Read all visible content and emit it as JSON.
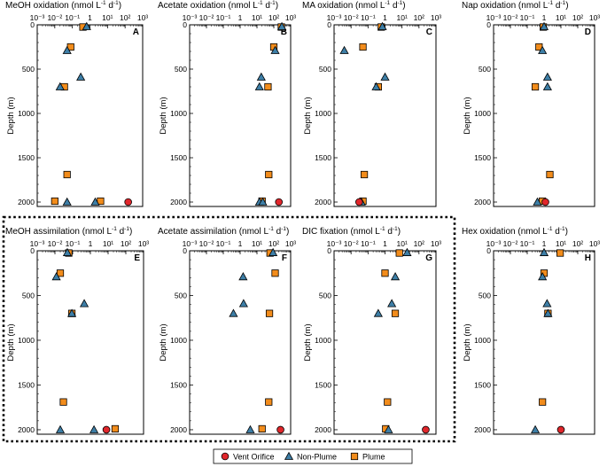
{
  "figure": {
    "y_axis_label": "Depth (m)",
    "y_ticks": [
      0,
      500,
      1000,
      1500,
      2000
    ],
    "ylim": [
      0,
      2050
    ],
    "x_ticks": [
      "10⁻³",
      "10⁻²",
      "10⁻¹",
      "1",
      "10¹",
      "10²",
      "10³"
    ],
    "xlim_log10": [
      -3,
      3
    ],
    "unit_prefix": "(nmol L",
    "unit_mid": "d",
    "unit_close": ")",
    "unit_exp": "-1",
    "legend": [
      {
        "label": "Vent Orifice",
        "marker": "circle",
        "color": "#e0262b"
      },
      {
        "label": "Non-Plume",
        "marker": "triangle",
        "color": "#3d7ea6"
      },
      {
        "label": "Plume",
        "marker": "square",
        "color": "#f28c1b"
      }
    ]
  },
  "chart_data": [
    {
      "type": "scatter",
      "letter": "A",
      "title_main": "MeOH oxidation",
      "xscale": "log",
      "xlim": [
        0.001,
        1000
      ],
      "ylim": [
        0,
        2050
      ],
      "series": [
        {
          "name": "Vent Orifice",
          "points": [
            [
              150,
              2000
            ]
          ]
        },
        {
          "name": "Non-Plume",
          "points": [
            [
              0.65,
              20
            ],
            [
              0.05,
              290
            ],
            [
              0.3,
              590
            ],
            [
              0.02,
              700
            ],
            [
              0.05,
              2000
            ],
            [
              2.0,
              2000
            ]
          ]
        },
        {
          "name": "Plume",
          "points": [
            [
              0.4,
              25
            ],
            [
              0.08,
              250
            ],
            [
              0.035,
              700
            ],
            [
              0.05,
              1690
            ],
            [
              0.01,
              1990
            ],
            [
              4.0,
              1990
            ]
          ]
        }
      ]
    },
    {
      "type": "scatter",
      "letter": "B",
      "title_main": "Acetate oxidation",
      "xscale": "log",
      "xlim": [
        0.001,
        1000
      ],
      "ylim": [
        0,
        2050
      ],
      "series": [
        {
          "name": "Vent Orifice",
          "points": [
            [
              200,
              2000
            ]
          ]
        },
        {
          "name": "Non-Plume",
          "points": [
            [
              300,
              20
            ],
            [
              120,
              290
            ],
            [
              18,
              590
            ],
            [
              14,
              700
            ],
            [
              14,
              2000
            ],
            [
              22,
              2000
            ]
          ]
        },
        {
          "name": "Plume",
          "points": [
            [
              280,
              25
            ],
            [
              100,
              250
            ],
            [
              45,
              700
            ],
            [
              50,
              1690
            ],
            [
              20,
              1990
            ]
          ]
        }
      ]
    },
    {
      "type": "scatter",
      "letter": "C",
      "title_main": "MA oxidation",
      "xscale": "log",
      "xlim": [
        0.001,
        1000
      ],
      "ylim": [
        0,
        2050
      ],
      "series": [
        {
          "name": "Vent Orifice",
          "points": [
            [
              0.03,
              2000
            ]
          ]
        },
        {
          "name": "Non-Plume",
          "points": [
            [
              0.7,
              20
            ],
            [
              0.004,
              290
            ],
            [
              1.0,
              590
            ],
            [
              0.3,
              700
            ],
            [
              0.04,
              2000
            ]
          ]
        },
        {
          "name": "Plume",
          "points": [
            [
              0.6,
              25
            ],
            [
              0.05,
              250
            ],
            [
              0.4,
              700
            ],
            [
              0.06,
              1690
            ],
            [
              0.05,
              1990
            ]
          ]
        }
      ]
    },
    {
      "type": "scatter",
      "letter": "D",
      "title_main": "Nap oxidation",
      "xscale": "log",
      "xlim": [
        0.001,
        1000
      ],
      "ylim": [
        0,
        2050
      ],
      "series": [
        {
          "name": "Vent Orifice",
          "points": [
            [
              1.2,
              2000
            ]
          ]
        },
        {
          "name": "Non-Plume",
          "points": [
            [
              1.0,
              20
            ],
            [
              0.8,
              290
            ],
            [
              1.6,
              590
            ],
            [
              1.6,
              700
            ],
            [
              0.4,
              2000
            ]
          ]
        },
        {
          "name": "Plume",
          "points": [
            [
              0.9,
              25
            ],
            [
              0.5,
              250
            ],
            [
              0.3,
              700
            ],
            [
              2.2,
              1690
            ],
            [
              0.8,
              1990
            ]
          ]
        }
      ]
    },
    {
      "type": "scatter",
      "letter": "E",
      "title_main": "MeOH assimilation",
      "xscale": "log",
      "xlim": [
        0.001,
        1000
      ],
      "ylim": [
        0,
        2050
      ],
      "series": [
        {
          "name": "Vent Orifice",
          "points": [
            [
              8,
              2000
            ]
          ]
        },
        {
          "name": "Non-Plume",
          "points": [
            [
              0.05,
              20
            ],
            [
              0.012,
              290
            ],
            [
              0.45,
              590
            ],
            [
              0.09,
              700
            ],
            [
              0.02,
              2000
            ],
            [
              1.6,
              2000
            ]
          ]
        },
        {
          "name": "Plume",
          "points": [
            [
              0.06,
              25
            ],
            [
              0.02,
              250
            ],
            [
              0.09,
              700
            ],
            [
              0.03,
              1690
            ],
            [
              25,
              1990
            ]
          ]
        }
      ]
    },
    {
      "type": "scatter",
      "letter": "F",
      "title_main": "Acetate assimilation",
      "xscale": "log",
      "xlim": [
        0.001,
        1000
      ],
      "ylim": [
        0,
        2050
      ],
      "series": [
        {
          "name": "Vent Orifice",
          "points": [
            [
              250,
              2000
            ]
          ]
        },
        {
          "name": "Non-Plume",
          "points": [
            [
              90,
              20
            ],
            [
              1.5,
              290
            ],
            [
              1.6,
              590
            ],
            [
              0.4,
              700
            ],
            [
              4.0,
              2000
            ]
          ]
        },
        {
          "name": "Plume",
          "points": [
            [
              60,
              25
            ],
            [
              120,
              250
            ],
            [
              55,
              700
            ],
            [
              50,
              1690
            ],
            [
              20,
              1990
            ]
          ]
        }
      ]
    },
    {
      "type": "scatter",
      "letter": "G",
      "title_main": "DIC fixation",
      "xscale": "log",
      "xlim": [
        0.001,
        1000
      ],
      "ylim": [
        0,
        2050
      ],
      "series": [
        {
          "name": "Vent Orifice",
          "points": [
            [
              250,
              2000
            ]
          ]
        },
        {
          "name": "Non-Plume",
          "points": [
            [
              20,
              20
            ],
            [
              4.0,
              290
            ],
            [
              2.5,
              590
            ],
            [
              0.4,
              700
            ],
            [
              1.6,
              2000
            ]
          ]
        },
        {
          "name": "Plume",
          "points": [
            [
              7,
              25
            ],
            [
              1.0,
              250
            ],
            [
              4.0,
              700
            ],
            [
              1.4,
              1690
            ],
            [
              1.1,
              1990
            ]
          ]
        }
      ]
    },
    {
      "type": "scatter",
      "letter": "H",
      "title_main": "Hex oxidation",
      "xscale": "log",
      "xlim": [
        0.001,
        1000
      ],
      "ylim": [
        0,
        2050
      ],
      "series": [
        {
          "name": "Vent Orifice",
          "points": [
            [
              10,
              2000
            ]
          ]
        },
        {
          "name": "Non-Plume",
          "points": [
            [
              1.0,
              20
            ],
            [
              0.8,
              290
            ],
            [
              1.5,
              590
            ],
            [
              1.7,
              700
            ],
            [
              0.3,
              2000
            ]
          ]
        },
        {
          "name": "Plume",
          "points": [
            [
              9,
              25
            ],
            [
              1.0,
              250
            ],
            [
              1.7,
              700
            ],
            [
              0.8,
              1690
            ]
          ]
        }
      ]
    }
  ]
}
